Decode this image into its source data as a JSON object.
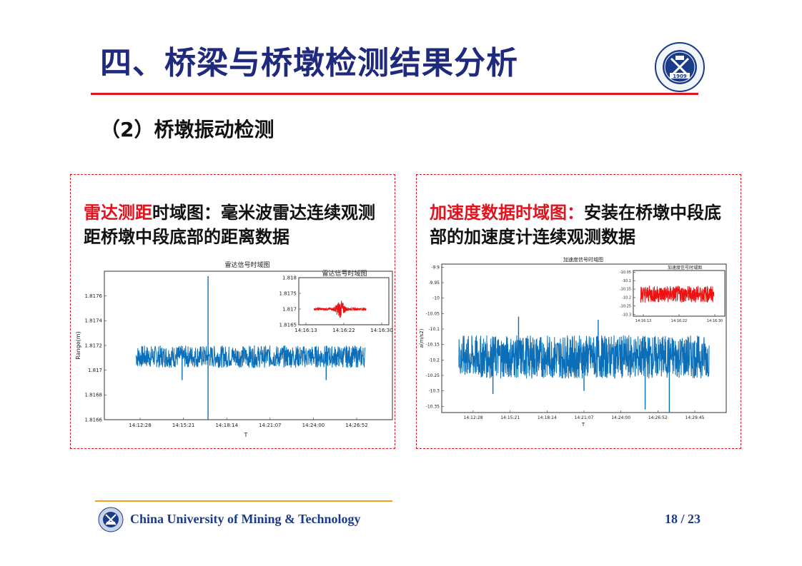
{
  "slide": {
    "title": "四、桥梁与桥墩检测结果分析",
    "subtitle": "（2）桥墩振动检测",
    "page_number": "18 / 23",
    "university": "China University of Mining  & Technology",
    "logo_year": "1909"
  },
  "left_panel": {
    "heading_highlight": "雷达测距",
    "heading_rest": "时域图：毫米波雷达连续观测距桥墩中段底部的距离数据"
  },
  "right_panel": {
    "heading_highlight": "加速度数据时域图：",
    "heading_rest": "安装在桥墩中段底部的加速度计连续观测数据"
  },
  "colors": {
    "title": "#1f2a7c",
    "accent_red": "#e0141e",
    "signal_blue": "#0a6fb8",
    "signal_red": "#ee1111",
    "footer_rule": "#f0a020"
  },
  "chart_data": [
    {
      "type": "line",
      "title": "雷达信号时域图",
      "xlabel": "T",
      "ylabel": "Range(m)",
      "x_ticks": [
        "14:12:28",
        "14:15:21",
        "14:18:14",
        "14:21:07",
        "14:24:00",
        "14:26:52"
      ],
      "y_ticks": [
        "1.8166",
        "1.8168",
        "1.817",
        "1.8172",
        "1.8174",
        "1.8176"
      ],
      "ylim": [
        1.8166,
        1.8178
      ],
      "series": [
        {
          "baseline": 1.81711,
          "noise_amplitude": 9e-05,
          "spikes": [
            1.81776,
            1.8166
          ]
        }
      ]
    },
    {
      "type": "line",
      "title": "雷达信号时域图",
      "x_ticks": [
        "14:16:13",
        "14:16:22",
        "14:16:30"
      ],
      "y_ticks": [
        "1.8165",
        "1.817",
        "1.8175",
        "1.818"
      ],
      "ylim": [
        1.8165,
        1.818
      ],
      "series": [
        {
          "baseline": 1.817,
          "noise_amplitude": 4e-05,
          "peak": 0.00025
        }
      ]
    },
    {
      "type": "line",
      "title": "加速度信号时域图",
      "xlabel": "T",
      "ylabel": "a(m/s2)",
      "x_ticks": [
        "14:12:28",
        "14:15:21",
        "14:18:14",
        "14:21:07",
        "14:24:00",
        "14:26:52",
        "14:29:45"
      ],
      "y_ticks": [
        "-9.9",
        "-9.95",
        "-10",
        "-10.05",
        "-10.1",
        "-10.15",
        "-10.2",
        "-10.25",
        "-10.3",
        "-10.35"
      ],
      "ylim": [
        -10.37,
        -9.89
      ],
      "series": [
        {
          "baseline": -10.19,
          "noise_amplitude": 0.07,
          "spikes_low": [
            -10.36,
            -10.37
          ]
        }
      ]
    },
    {
      "type": "line",
      "title": "加速度信号时域图",
      "x_ticks": [
        "14:16:13",
        "14:16:22",
        "14:16:30"
      ],
      "y_ticks": [
        "-10.05",
        "-10.1",
        "-10.15",
        "-10.2",
        "-10.25",
        "-10.3"
      ],
      "ylim": [
        -10.31,
        -10.04
      ],
      "series": [
        {
          "baseline": -10.18,
          "noise_amplitude": 0.05
        }
      ]
    }
  ]
}
